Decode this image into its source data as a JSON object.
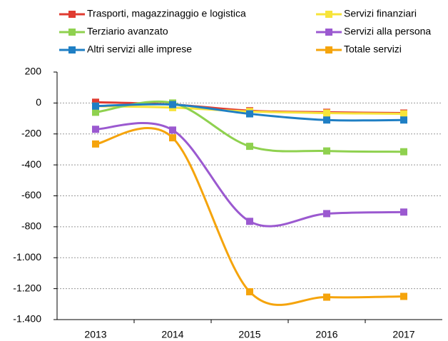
{
  "chart_data": {
    "type": "line",
    "categories": [
      "2013",
      "2014",
      "2015",
      "2016",
      "2017"
    ],
    "series": [
      {
        "name": "Trasporti, magazzinaggio e logistica",
        "color": "#e03c31",
        "values": [
          5,
          -10,
          -50,
          -60,
          -65
        ]
      },
      {
        "name": "Servizi finanziari",
        "color": "#f7e43a",
        "values": [
          -20,
          -30,
          -55,
          -65,
          -70
        ]
      },
      {
        "name": "Terziario avanzato",
        "color": "#8fd14f",
        "values": [
          -60,
          0,
          -280,
          -310,
          -315
        ]
      },
      {
        "name": "Servizi alla persona",
        "color": "#9b59d0",
        "values": [
          -170,
          -175,
          -765,
          -715,
          -705
        ]
      },
      {
        "name": "Altri servizi alle imprese",
        "color": "#1f7fc4",
        "values": [
          -20,
          -10,
          -70,
          -110,
          -110
        ]
      },
      {
        "name": "Totale servizi",
        "color": "#f5a40c",
        "values": [
          -265,
          -225,
          -1220,
          -1255,
          -1250
        ]
      }
    ],
    "ylim": [
      -1400,
      200
    ],
    "yticks": [
      200,
      0,
      -200,
      -400,
      -600,
      -800,
      {
        "value": -1000,
        "label": "-1.000"
      },
      {
        "value": -1200,
        "label": "-1.200"
      },
      {
        "value": -1400,
        "label": "-1.400"
      }
    ],
    "grid": true,
    "smooth": true
  }
}
